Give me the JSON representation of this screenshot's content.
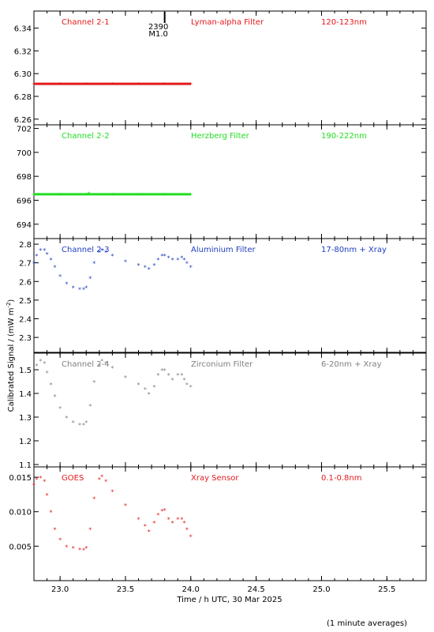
{
  "figure": {
    "ylabel": "Calibrated Signal / (mW m",
    "ylabel_sup": "-2",
    "ylabel_close": ")",
    "xlabel": "Time / h UTC, 30 Mar 2025",
    "footnote": "(1 minute averages)",
    "xlim": [
      22.8,
      25.8
    ],
    "xticks": [
      "23.0",
      "23.5",
      "24.0",
      "24.5",
      "25.0",
      "25.5"
    ],
    "marker_symbol": "*",
    "event_marker": {
      "x": 23.8,
      "label1": "2390",
      "label2": "M1.0"
    }
  },
  "chart_data": [
    {
      "type": "scatter",
      "panel": "Channel 2-1",
      "labels": [
        "Channel 2-1",
        "Lyman-alpha Filter",
        "120-123nm"
      ],
      "color": "#e41a1c",
      "ylim": [
        6.255,
        6.355
      ],
      "yticks": [
        "6.26",
        "6.28",
        "6.30",
        "6.32",
        "6.34"
      ],
      "x": [
        22.8,
        23.0,
        23.2,
        23.4,
        23.6,
        23.8,
        24.0
      ],
      "y": [
        6.291,
        6.291,
        6.291,
        6.291,
        6.291,
        6.291,
        6.291
      ]
    },
    {
      "type": "scatter",
      "panel": "Channel 2-2",
      "labels": [
        "Channel 2-2",
        "Herzberg Filter",
        "190-222nm"
      ],
      "color": "#22dd22",
      "ylim": [
        692.8,
        702.3
      ],
      "yticks": [
        "694",
        "696",
        "698",
        "700",
        "702"
      ],
      "x": [
        22.8,
        23.0,
        23.2,
        23.22,
        23.4,
        23.6,
        23.8,
        24.0
      ],
      "y": [
        696.5,
        696.5,
        696.5,
        696.6,
        696.5,
        696.5,
        696.5,
        696.5
      ]
    },
    {
      "type": "scatter",
      "panel": "Channel 2-3",
      "labels": [
        "Channel 2-3",
        "Aluminium Filter",
        "17-80nm + Xray"
      ],
      "color": "#1f3fbf",
      "ylim": [
        2.22,
        2.83
      ],
      "yticks": [
        "2.3",
        "2.4",
        "2.5",
        "2.6",
        "2.7",
        "2.8"
      ],
      "x": [
        22.8,
        22.82,
        22.85,
        22.88,
        22.9,
        22.93,
        22.96,
        23.0,
        23.05,
        23.1,
        23.15,
        23.18,
        23.2,
        23.23,
        23.26,
        23.3,
        23.32,
        23.35,
        23.4,
        23.5,
        23.6,
        23.65,
        23.68,
        23.72,
        23.75,
        23.78,
        23.8,
        23.83,
        23.86,
        23.9,
        23.93,
        23.95,
        23.97,
        24.0
      ],
      "y": [
        2.7,
        2.74,
        2.77,
        2.77,
        2.75,
        2.72,
        2.68,
        2.63,
        2.59,
        2.57,
        2.56,
        2.56,
        2.57,
        2.62,
        2.7,
        2.76,
        2.77,
        2.76,
        2.74,
        2.71,
        2.69,
        2.68,
        2.67,
        2.69,
        2.72,
        2.74,
        2.74,
        2.73,
        2.72,
        2.72,
        2.73,
        2.72,
        2.7,
        2.68
      ]
    },
    {
      "type": "scatter",
      "panel": "Channel 2-4",
      "labels": [
        "Channel 2-4",
        "Zirconium Filter",
        "6-20nm + Xray"
      ],
      "color": "#808080",
      "ylim": [
        1.09,
        1.57
      ],
      "yticks": [
        "1.1",
        "1.2",
        "1.3",
        "1.4",
        "1.5"
      ],
      "x": [
        22.8,
        22.82,
        22.85,
        22.88,
        22.9,
        22.93,
        22.96,
        23.0,
        23.05,
        23.1,
        23.15,
        23.18,
        23.2,
        23.23,
        23.26,
        23.3,
        23.32,
        23.35,
        23.4,
        23.5,
        23.6,
        23.65,
        23.68,
        23.72,
        23.75,
        23.78,
        23.8,
        23.83,
        23.86,
        23.9,
        23.93,
        23.95,
        23.97,
        24.0
      ],
      "y": [
        1.48,
        1.52,
        1.54,
        1.53,
        1.49,
        1.44,
        1.39,
        1.34,
        1.3,
        1.28,
        1.27,
        1.27,
        1.28,
        1.35,
        1.45,
        1.52,
        1.54,
        1.53,
        1.51,
        1.47,
        1.44,
        1.42,
        1.4,
        1.43,
        1.48,
        1.5,
        1.5,
        1.48,
        1.46,
        1.48,
        1.48,
        1.46,
        1.44,
        1.43
      ]
    },
    {
      "type": "scatter",
      "panel": "GOES",
      "labels": [
        "GOES",
        "Xray Sensor",
        "0.1-0.8nm"
      ],
      "color": "#e41a1c",
      "ylim": [
        0.0,
        0.0165
      ],
      "yticks": [
        "0.005",
        "0.010",
        "0.015"
      ],
      "x": [
        22.8,
        22.82,
        22.85,
        22.88,
        22.9,
        22.93,
        22.96,
        23.0,
        23.05,
        23.1,
        23.15,
        23.18,
        23.2,
        23.23,
        23.26,
        23.3,
        23.32,
        23.35,
        23.4,
        23.5,
        23.6,
        23.65,
        23.68,
        23.72,
        23.75,
        23.78,
        23.8,
        23.83,
        23.86,
        23.9,
        23.93,
        23.95,
        23.97,
        24.0
      ],
      "y": [
        0.014,
        0.0148,
        0.015,
        0.0145,
        0.0125,
        0.01,
        0.0075,
        0.006,
        0.005,
        0.0048,
        0.0046,
        0.0045,
        0.0048,
        0.0075,
        0.012,
        0.0148,
        0.0152,
        0.0145,
        0.013,
        0.011,
        0.009,
        0.008,
        0.0072,
        0.0085,
        0.0096,
        0.0102,
        0.0103,
        0.009,
        0.0085,
        0.009,
        0.009,
        0.0085,
        0.0075,
        0.0065
      ]
    }
  ]
}
